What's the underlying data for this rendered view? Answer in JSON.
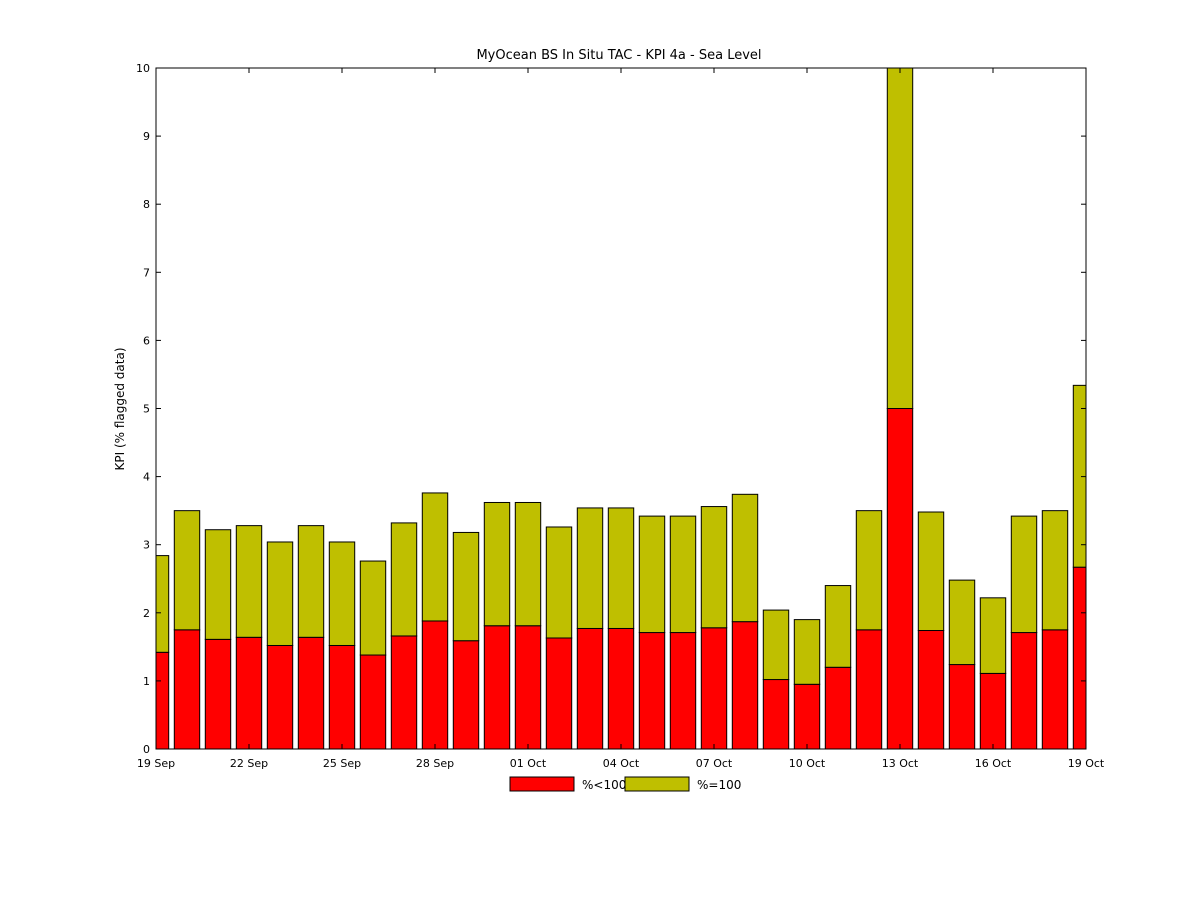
{
  "chart_data": {
    "type": "bar",
    "stacked": true,
    "title": "MyOcean  BS In Situ TAC - KPI 4a - Sea Level",
    "ylabel": "KPI (% flagged data)",
    "xlabel": "",
    "ylim": [
      0,
      10
    ],
    "yticks": [
      "0",
      "1",
      "2",
      "3",
      "4",
      "5",
      "6",
      "7",
      "8",
      "9",
      "10"
    ],
    "xlim": [
      "19 Sep",
      "19 Oct"
    ],
    "xticks": [
      {
        "label": "19 Sep",
        "day": 0
      },
      {
        "label": "22 Sep",
        "day": 3
      },
      {
        "label": "25 Sep",
        "day": 6
      },
      {
        "label": "28 Sep",
        "day": 9
      },
      {
        "label": "01 Oct",
        "day": 12
      },
      {
        "label": "04 Oct",
        "day": 15
      },
      {
        "label": "07 Oct",
        "day": 18
      },
      {
        "label": "10 Oct",
        "day": 21
      },
      {
        "label": "13 Oct",
        "day": 24
      },
      {
        "label": "16 Oct",
        "day": 27
      },
      {
        "label": "19 Oct",
        "day": 30
      }
    ],
    "categories": [
      "19 Sep",
      "20 Sep",
      "21 Sep",
      "22 Sep",
      "23 Sep",
      "24 Sep",
      "25 Sep",
      "26 Sep",
      "27 Sep",
      "28 Sep",
      "29 Sep",
      "30 Sep",
      "01 Oct",
      "02 Oct",
      "03 Oct",
      "04 Oct",
      "05 Oct",
      "06 Oct",
      "07 Oct",
      "08 Oct",
      "09 Oct",
      "10 Oct",
      "11 Oct",
      "12 Oct",
      "13 Oct",
      "14 Oct",
      "15 Oct",
      "16 Oct",
      "17 Oct",
      "18 Oct",
      "19 Oct"
    ],
    "series": [
      {
        "name": "%<100",
        "color": "#ff0000",
        "values": [
          1.42,
          1.75,
          1.61,
          1.64,
          1.52,
          1.64,
          1.52,
          1.38,
          1.66,
          1.88,
          1.59,
          1.81,
          1.81,
          1.63,
          1.77,
          1.77,
          1.71,
          1.71,
          1.78,
          1.87,
          1.02,
          0.95,
          1.2,
          1.75,
          5.0,
          1.74,
          1.24,
          1.11,
          1.71,
          1.75,
          2.67
        ]
      },
      {
        "name": "%=100",
        "color": "#bfbf00",
        "values": [
          1.42,
          1.75,
          1.61,
          1.64,
          1.52,
          1.64,
          1.52,
          1.38,
          1.66,
          1.88,
          1.59,
          1.81,
          1.81,
          1.63,
          1.77,
          1.77,
          1.71,
          1.71,
          1.78,
          1.87,
          1.02,
          0.95,
          1.2,
          1.75,
          5.0,
          1.74,
          1.24,
          1.11,
          1.71,
          1.75,
          2.67
        ]
      }
    ],
    "legend": {
      "placement": "bottom-center"
    },
    "grid": false
  }
}
